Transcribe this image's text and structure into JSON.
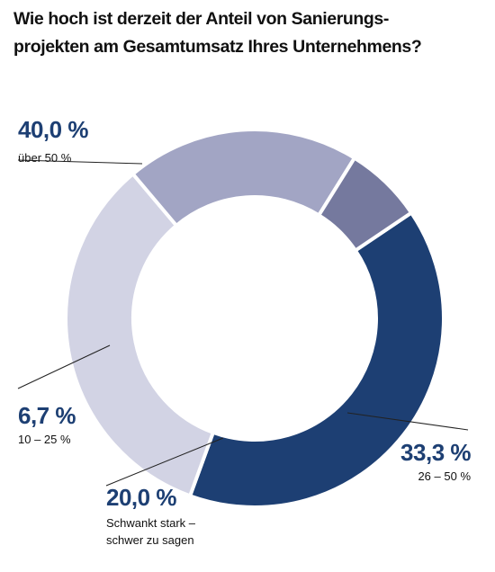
{
  "chart_data": {
    "type": "pie",
    "variant": "donut",
    "title_lines": [
      "Wie hoch ist derzeit der Anteil von Sanierungs-",
      "projekten am Gesamtumsatz Ihres Unternehmens?"
    ],
    "slices": [
      {
        "id": "over50",
        "value": 40.0,
        "value_label": "40,0 %",
        "category_lines": [
          "über 50 %"
        ],
        "color": "#1d3f73"
      },
      {
        "id": "26-50",
        "value": 33.3,
        "value_label": "33,3 %",
        "category_lines": [
          "26 – 50 %"
        ],
        "color": "#d2d3e4"
      },
      {
        "id": "varies",
        "value": 20.0,
        "value_label": "20,0 %",
        "category_lines": [
          "Schwankt stark –",
          "schwer zu sagen"
        ],
        "color": "#a2a5c4"
      },
      {
        "id": "10-25",
        "value": 6.7,
        "value_label": "6,7 %",
        "category_lines": [
          "10 – 25 %"
        ],
        "color": "#75799e"
      }
    ],
    "start_angle_deg": 56,
    "direction": "clockwise",
    "legend": "none"
  },
  "colors": {
    "label_accent": "#1d3f73",
    "leader_line": "#222222",
    "slice_separator": "#ffffff"
  }
}
